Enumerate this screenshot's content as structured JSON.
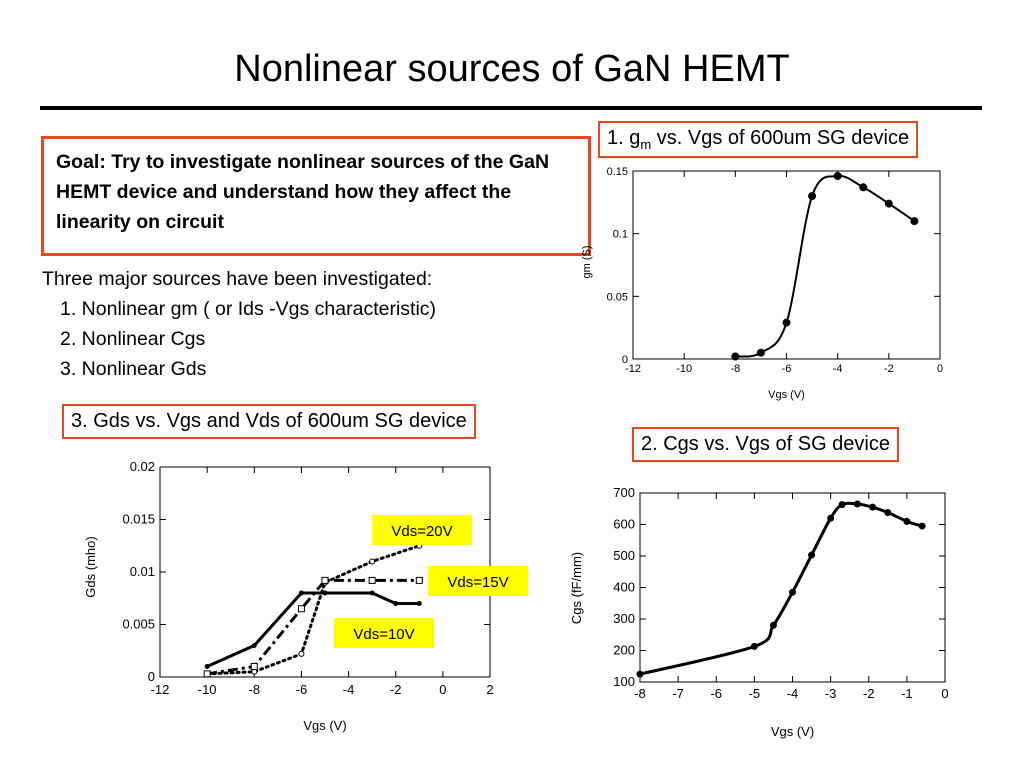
{
  "slide": {
    "title": "Nonlinear sources of GaN HEMT",
    "goal": "Goal: Try to investigate nonlinear sources of the GaN HEMT device and understand how they affect the linearity on circuit",
    "sources_intro": "Three major sources have been investigated:",
    "sources": [
      "1. Nonlinear gm ( or Ids -Vgs characteristic)",
      "2. Nonlinear Cgs",
      "3. Nonlinear Gds"
    ],
    "caption1_pre": "1. g",
    "caption1_sub": "m",
    "caption1_post": " vs. Vgs of 600um SG device",
    "caption2": "2. Cgs vs. Vgs of SG device",
    "caption3": "3. Gds vs. Vgs and Vds of 600um SG device",
    "accent_color": "#e8471f",
    "label_bg": "#ffff00"
  },
  "chart_data": [
    {
      "type": "line",
      "xlabel": "Vgs (V)",
      "ylabel": "gm (S)",
      "xlim": [
        -12,
        0
      ],
      "ylim": [
        0,
        0.15
      ],
      "xticks": [
        -12,
        -10,
        -8,
        -6,
        -4,
        -2,
        0
      ],
      "yticks": [
        0,
        0.05,
        0.1,
        0.15
      ],
      "series": [
        {
          "points": [
            [
              -8,
              0.002
            ],
            [
              -7,
              0.005
            ],
            [
              -6,
              0.029
            ],
            [
              -5,
              0.13
            ],
            [
              -4,
              0.146
            ],
            [
              -3,
              0.137
            ],
            [
              -2,
              0.124
            ],
            [
              -1,
              0.11
            ]
          ]
        }
      ]
    },
    {
      "type": "line",
      "xlabel": "Vgs (V)",
      "ylabel": "Cgs (fF/mm)",
      "xlim": [
        -8,
        0
      ],
      "ylim": [
        100,
        700
      ],
      "xticks": [
        -8,
        -7,
        -6,
        -5,
        -4,
        -3,
        -2,
        -1,
        0
      ],
      "yticks": [
        100,
        200,
        300,
        400,
        500,
        600,
        700
      ],
      "series": [
        {
          "points": [
            [
              -8,
              125
            ],
            [
              -5,
              213
            ],
            [
              -4.5,
              280
            ],
            [
              -4,
              385
            ],
            [
              -3.5,
              503
            ],
            [
              -3,
              620
            ],
            [
              -2.7,
              663
            ],
            [
              -2.3,
              665
            ],
            [
              -1.9,
              655
            ],
            [
              -1.5,
              638
            ],
            [
              -1.0,
              610
            ],
            [
              -0.6,
              595
            ]
          ]
        }
      ]
    },
    {
      "type": "line",
      "xlabel": "Vgs (V)",
      "ylabel": "Gds (mho)",
      "xlim": [
        -12,
        2
      ],
      "ylim": [
        0,
        0.02
      ],
      "xticks": [
        -12,
        -10,
        -8,
        -6,
        -4,
        -2,
        0,
        2
      ],
      "yticks": [
        0,
        0.005,
        0.01,
        0.015,
        0.02
      ],
      "series": [
        {
          "name": "Vds=20V",
          "style": "dotted",
          "points": [
            [
              -10,
              0.0003
            ],
            [
              -8,
              0.0005
            ],
            [
              -6,
              0.0022
            ],
            [
              -5,
              0.009
            ],
            [
              -3,
              0.011
            ],
            [
              -1,
              0.0125
            ]
          ]
        },
        {
          "name": "Vds=15V",
          "style": "dashdot",
          "points": [
            [
              -10,
              0.0003
            ],
            [
              -8,
              0.001
            ],
            [
              -6,
              0.0065
            ],
            [
              -5,
              0.0092
            ],
            [
              -3,
              0.0092
            ],
            [
              -1,
              0.0092
            ]
          ]
        },
        {
          "name": "Vds=10V",
          "style": "solid",
          "points": [
            [
              -10,
              0.001
            ],
            [
              -8,
              0.003
            ],
            [
              -6,
              0.008
            ],
            [
              -5,
              0.008
            ],
            [
              -3,
              0.008
            ],
            [
              -2,
              0.007
            ],
            [
              -1,
              0.007
            ]
          ]
        }
      ]
    }
  ]
}
